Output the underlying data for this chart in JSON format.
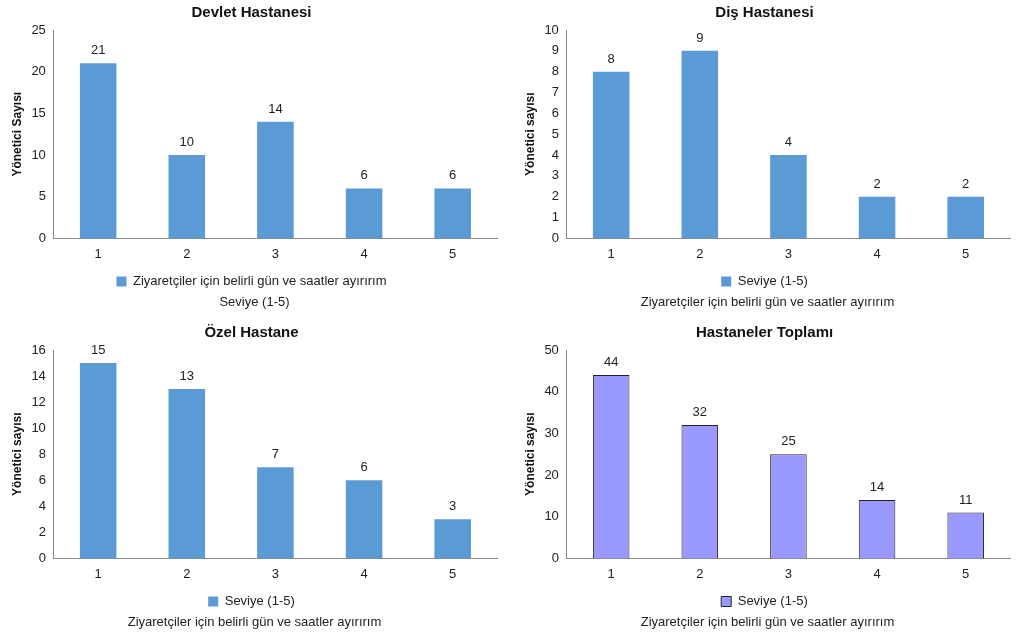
{
  "chart_data": [
    {
      "type": "bar",
      "title": "Devlet Hastanesi",
      "ylabel": "Yönetici Sayısı",
      "xlabel": "Seviye (1-5)",
      "categories": [
        "1",
        "2",
        "3",
        "4",
        "5"
      ],
      "series": [
        {
          "name": "Ziyaretçiler için belirli gün ve saatler ayırırım",
          "color": "#5b9bd5",
          "values": [
            21,
            10,
            14,
            6,
            6
          ]
        }
      ],
      "ylim": [
        0,
        25
      ],
      "yticks": [
        0,
        5,
        10,
        15,
        20,
        25
      ],
      "grid": false,
      "legend": "bottom",
      "data_labels": true
    },
    {
      "type": "bar",
      "title": "Diş Hastanesi",
      "ylabel": "Yönetici sayısı",
      "xlabel": "Ziyaretçiler için belirli gün ve saatler ayırırım",
      "categories": [
        "1",
        "2",
        "3",
        "4",
        "5"
      ],
      "series": [
        {
          "name": "Seviye (1-5)",
          "color": "#5b9bd5",
          "values": [
            8,
            9,
            4,
            2,
            2
          ]
        }
      ],
      "ylim": [
        0,
        10
      ],
      "yticks": [
        0,
        1,
        2,
        3,
        4,
        5,
        6,
        7,
        8,
        9,
        10
      ],
      "grid": false,
      "legend": "bottom",
      "data_labels": true
    },
    {
      "type": "bar",
      "title": "Özel Hastane",
      "ylabel": "Yönetici sayısı",
      "xlabel": "Ziyaretçiler için belirli gün ve saatler ayırırım",
      "categories": [
        "1",
        "2",
        "3",
        "4",
        "5"
      ],
      "series": [
        {
          "name": "Seviye (1-5)",
          "color": "#5b9bd5",
          "values": [
            15,
            13,
            7,
            6,
            3
          ]
        }
      ],
      "ylim": [
        0,
        16
      ],
      "yticks": [
        0,
        2,
        4,
        6,
        8,
        10,
        12,
        14,
        16
      ],
      "grid": false,
      "legend": "bottom",
      "data_labels": true
    },
    {
      "type": "bar",
      "title": "Hastaneler Toplamı",
      "ylabel": "Yönetici sayısı",
      "xlabel": "Ziyaretçiler için belirli gün ve saatler ayırırım",
      "categories": [
        "1",
        "2",
        "3",
        "4",
        "5"
      ],
      "series": [
        {
          "name": "Seviye (1-5)",
          "color": "#9999ff",
          "values": [
            44,
            32,
            25,
            14,
            11
          ]
        }
      ],
      "ylim": [
        0,
        50
      ],
      "yticks": [
        0,
        10,
        20,
        30,
        40,
        50
      ],
      "grid": false,
      "legend": "bottom",
      "data_labels": true
    }
  ]
}
